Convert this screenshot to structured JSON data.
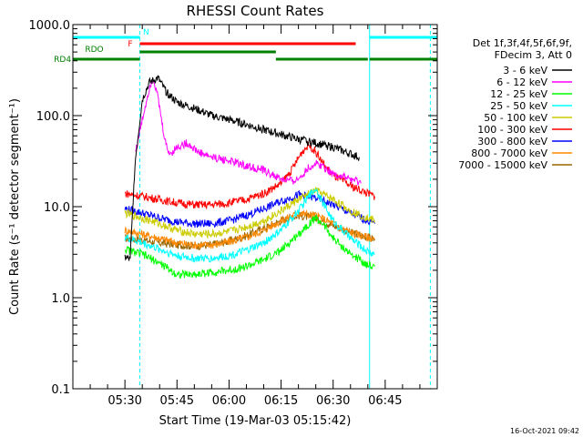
{
  "chart_data": {
    "type": "line",
    "title": "RHESSI Count Rates",
    "xlabel": "Start Time (19-Mar-03 05:15:42)",
    "ylabel": "Count Rate (s⁻¹ detector segment⁻¹)",
    "yscale": "log",
    "ylim": [
      0.1,
      1000
    ],
    "xlim_minutes_after_0515": [
      0,
      105
    ],
    "x_ticks": [
      "05:30",
      "05:45",
      "06:00",
      "06:15",
      "06:30",
      "06:45"
    ],
    "y_ticks": [
      "0.1",
      "1.0",
      "10.0",
      "100.0",
      "1000.0"
    ],
    "grid": false,
    "legend_position": "right",
    "legend_header": [
      "Det 1f,3f,4f,5f,6f,9f,",
      "FDecim 3, Att 0"
    ],
    "footer_date": "16-Oct-2021 09:42",
    "series": [
      {
        "name": "3 - 6 keV",
        "color": "#000000",
        "minutes": [
          15,
          16.5,
          17.9,
          20,
          22,
          24.5,
          27,
          30,
          35,
          40,
          45,
          50,
          55,
          60,
          65,
          70,
          75,
          80,
          82.5
        ],
        "values": [
          2.8,
          2.6,
          30,
          150,
          230,
          260,
          180,
          140,
          120,
          100,
          90,
          80,
          70,
          62,
          55,
          50,
          45,
          38,
          35
        ]
      },
      {
        "name": "6 - 12 keV",
        "color": "#ff00ff",
        "minutes": [
          18,
          20,
          22,
          23,
          24,
          25,
          26,
          27,
          28,
          30,
          33,
          36,
          40,
          45,
          50,
          55,
          60,
          63,
          65,
          67,
          70,
          72,
          75,
          80,
          83
        ],
        "values": [
          40,
          90,
          200,
          260,
          200,
          120,
          70,
          45,
          38,
          45,
          50,
          40,
          35,
          32,
          28,
          25,
          20,
          19,
          20,
          25,
          30,
          28,
          23,
          20,
          18
        ]
      },
      {
        "name": "12 - 25 keV",
        "color": "#00ff00",
        "minutes": [
          15,
          20,
          25,
          30,
          35,
          40,
          45,
          50,
          55,
          60,
          65,
          68,
          70,
          72,
          75,
          80,
          85,
          87
        ],
        "values": [
          3.4,
          3.0,
          2.4,
          1.8,
          1.8,
          1.9,
          2.0,
          2.2,
          2.6,
          3.3,
          5.0,
          6.5,
          7.5,
          6.5,
          4.5,
          3.0,
          2.3,
          2.2
        ]
      },
      {
        "name": "25 - 50 keV",
        "color": "#00ffff",
        "minutes": [
          15,
          20,
          25,
          30,
          35,
          40,
          45,
          50,
          55,
          60,
          65,
          68,
          70,
          72,
          75,
          80,
          85,
          87
        ],
        "values": [
          4.6,
          4.0,
          3.4,
          2.9,
          2.7,
          2.7,
          2.9,
          3.3,
          4.0,
          5.5,
          9.0,
          13,
          16,
          11,
          7.0,
          4.5,
          3.2,
          3.0
        ]
      },
      {
        "name": "50 - 100 keV",
        "color": "#cccc00",
        "minutes": [
          15,
          20,
          25,
          30,
          35,
          40,
          45,
          50,
          55,
          60,
          65,
          70,
          75,
          80,
          85,
          87
        ],
        "values": [
          8.5,
          7.5,
          6.5,
          5.5,
          5.0,
          5.0,
          5.3,
          6.0,
          7.0,
          9.0,
          12,
          15,
          12,
          9.0,
          7.5,
          7.0
        ]
      },
      {
        "name": "100 - 300 keV",
        "color": "#ff0000",
        "minutes": [
          15,
          20,
          25,
          30,
          35,
          40,
          45,
          50,
          55,
          60,
          63,
          66,
          68,
          70,
          72,
          75,
          80,
          85,
          87
        ],
        "values": [
          14,
          13,
          12,
          11,
          10.5,
          10.5,
          11,
          12,
          14,
          18,
          25,
          40,
          48,
          40,
          30,
          22,
          17,
          14,
          13
        ]
      },
      {
        "name": "300 - 800 keV",
        "color": "#0000ff",
        "minutes": [
          15,
          20,
          25,
          30,
          35,
          40,
          45,
          50,
          55,
          60,
          65,
          70,
          75,
          80,
          85,
          87
        ],
        "values": [
          9.5,
          8.5,
          7.5,
          6.8,
          6.5,
          6.5,
          7.0,
          8.0,
          9.5,
          11.5,
          13.5,
          12.5,
          10.5,
          8.5,
          7.0,
          6.5
        ]
      },
      {
        "name": "800 - 7000 keV",
        "color": "#ff8800",
        "minutes": [
          15,
          20,
          25,
          30,
          35,
          40,
          45,
          50,
          55,
          60,
          65,
          70,
          75,
          80,
          85,
          87
        ],
        "values": [
          5.5,
          5.0,
          4.5,
          4.0,
          3.8,
          3.8,
          4.1,
          4.6,
          5.5,
          7.0,
          8.5,
          8.0,
          6.5,
          5.2,
          4.6,
          4.4
        ]
      },
      {
        "name": "7000 - 15000 keV",
        "color": "#996600",
        "minutes": [
          15,
          20,
          25,
          30,
          35,
          40,
          45,
          50,
          55,
          60,
          65,
          70,
          75,
          80,
          85,
          87
        ],
        "values": [
          4.5,
          4.3,
          4.0,
          3.8,
          3.7,
          3.8,
          4.2,
          4.8,
          5.8,
          7.0,
          8.0,
          7.5,
          6.2,
          5.2,
          4.6,
          4.4
        ]
      }
    ],
    "vertical_markers": [
      {
        "color": "#00ffff",
        "style": "solid",
        "minute": 0
      },
      {
        "color": "#00ffff",
        "style": "dashed",
        "minute": 19.3
      },
      {
        "color": "#00ffff",
        "style": "solid",
        "minute": 85.5
      },
      {
        "color": "#00ffff",
        "style": "dashed",
        "minute": 103
      }
    ],
    "flag_bars": [
      {
        "label": "N",
        "color": "#00ffff",
        "segments": [
          [
            0,
            19.3
          ],
          [
            85.5,
            105
          ]
        ]
      },
      {
        "label": "F",
        "color": "#ff0000",
        "segments": [
          [
            19.3,
            81.5
          ]
        ]
      },
      {
        "label": "RDO",
        "color": "#008000",
        "segments": [
          [
            19.3,
            58.5
          ]
        ]
      },
      {
        "label": "RD4",
        "color": "#008000",
        "segments": [
          [
            0,
            19.3
          ],
          [
            58.5,
            85
          ],
          [
            85.5,
            105
          ]
        ]
      }
    ]
  }
}
